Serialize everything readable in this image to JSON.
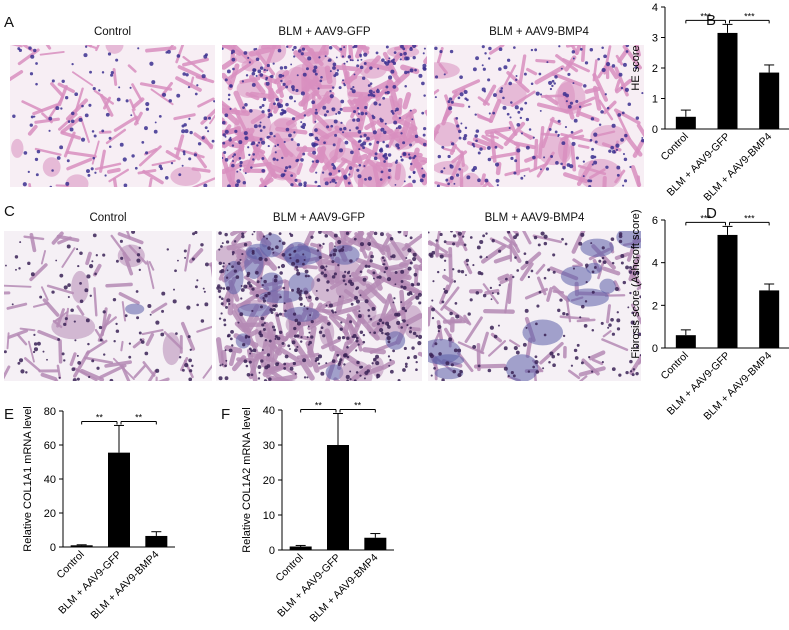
{
  "figure": {
    "panel_labels": [
      "A",
      "B",
      "C",
      "D",
      "E",
      "F"
    ],
    "he_images": {
      "titles": [
        "Control",
        "BLM + AAV9-GFP",
        "BLM + AAV9-BMP4"
      ]
    },
    "masson_images": {
      "titles": [
        "Control",
        "BLM + AAV9-GFP",
        "BLM + AAV9-BMP4"
      ]
    },
    "colors": {
      "he_background": "#f7eef4",
      "he_tissue": "#d98fc0",
      "he_nuclei": "#3b2f8f",
      "masson_background": "#f5f0f5",
      "masson_tissue": "#b58ab5",
      "masson_collagen": "#5b5ea8",
      "masson_nuclei": "#3a2256",
      "bar": "#000000"
    }
  },
  "chart_data": [
    {
      "id": "B",
      "type": "bar",
      "categories": [
        "Control",
        "BLM + AAV9-GFP",
        "BLM + AAV9-BMP4"
      ],
      "values": [
        0.4,
        3.15,
        1.85
      ],
      "errors": [
        0.22,
        0.28,
        0.25
      ],
      "ylabel": "HE score",
      "ylim": [
        0,
        4
      ],
      "yticks": [
        0,
        1,
        2,
        3,
        4
      ],
      "significance": [
        "***",
        "***"
      ]
    },
    {
      "id": "D",
      "type": "bar",
      "categories": [
        "Control",
        "BLM + AAV9-GFP",
        "BLM + AAV9-BMP4"
      ],
      "values": [
        0.6,
        5.3,
        2.7
      ],
      "errors": [
        0.25,
        0.4,
        0.3
      ],
      "ylabel": "Fibrosis score (Ashcroft score)",
      "ylim": [
        0,
        6
      ],
      "yticks": [
        0,
        2,
        4,
        6
      ],
      "significance": [
        "***",
        "***"
      ]
    },
    {
      "id": "E",
      "type": "bar",
      "categories": [
        "Control",
        "BLM + AAV9-GFP",
        "BLM + AAV9-BMP4"
      ],
      "values": [
        1.0,
        55.5,
        6.5
      ],
      "errors": [
        0.3,
        16.0,
        2.5
      ],
      "ylabel": "Relative COL1A1 mRNA level",
      "ylim": [
        0,
        80
      ],
      "yticks": [
        0,
        20,
        40,
        60,
        80
      ],
      "significance": [
        "**",
        "**"
      ]
    },
    {
      "id": "F",
      "type": "bar",
      "categories": [
        "Control",
        "BLM + AAV9-GFP",
        "BLM + AAV9-BMP4"
      ],
      "values": [
        1.0,
        30.0,
        3.5
      ],
      "errors": [
        0.3,
        9.0,
        1.2
      ],
      "ylabel": "Relative COL1A2 mRNA level",
      "ylim": [
        0,
        40
      ],
      "yticks": [
        0,
        10,
        20,
        30,
        40
      ],
      "significance": [
        "**",
        "**"
      ]
    }
  ]
}
